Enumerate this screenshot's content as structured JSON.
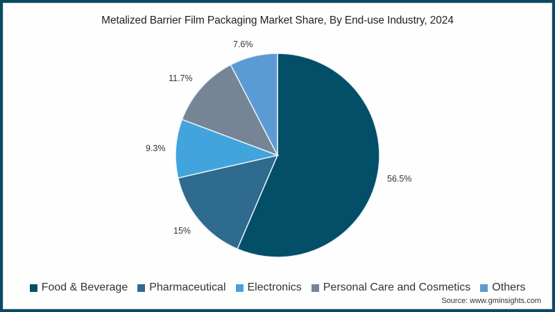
{
  "chart_data": {
    "type": "pie",
    "title": "Metalized Barrier Film Packaging Market Share, By End-use Industry, 2024",
    "categories": [
      "Food & Beverage",
      "Pharmaceutical",
      "Electronics",
      "Personal Care and Cosmetics",
      "Others"
    ],
    "values": [
      56.5,
      15,
      9.3,
      11.7,
      7.6
    ],
    "labels": [
      "56.5%",
      "15%",
      "9.3%",
      "11.7%",
      "7.6%"
    ],
    "colors": [
      "#034f67",
      "#2e6b8e",
      "#41a4dc",
      "#768596",
      "#5b9bd5"
    ],
    "start_angle": "12 o'clock, clockwise",
    "legend_position": "bottom"
  },
  "title": "Metalized Barrier Film Packaging Market Share, By End-use Industry, 2024",
  "legend": [
    {
      "label": "Food & Beverage",
      "color": "#034f67"
    },
    {
      "label": "Pharmaceutical",
      "color": "#2e6b8e"
    },
    {
      "label": "Electronics",
      "color": "#41a4dc"
    },
    {
      "label": "Personal Care and Cosmetics",
      "color": "#768596"
    },
    {
      "label": "Others",
      "color": "#5b9bd5"
    }
  ],
  "source": "Source: www.gminsights.com"
}
